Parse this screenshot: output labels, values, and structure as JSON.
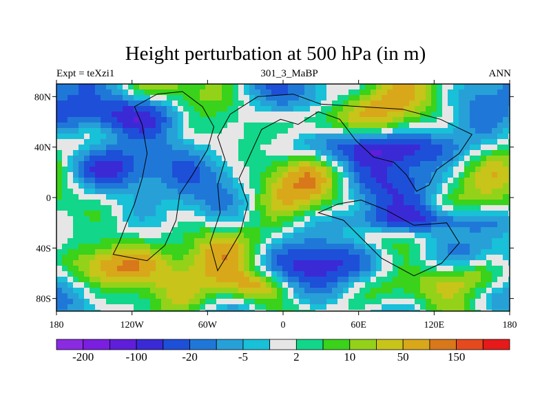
{
  "chart_data": {
    "type": "heatmap",
    "title": "Height perturbation at 500 hPa (in m)",
    "left_string": "Expt = teXzi1",
    "center_string": "301_3_MaBP",
    "right_string": "ANN",
    "x_ticks": [
      {
        "value": -180,
        "label": "180"
      },
      {
        "value": -120,
        "label": "120W"
      },
      {
        "value": -60,
        "label": "60W"
      },
      {
        "value": 0,
        "label": "0"
      },
      {
        "value": 60,
        "label": "60E"
      },
      {
        "value": 120,
        "label": "120E"
      },
      {
        "value": 180,
        "label": "180"
      }
    ],
    "y_ticks": [
      {
        "value": 80,
        "label": "80N"
      },
      {
        "value": 40,
        "label": "40N"
      },
      {
        "value": 0,
        "label": "0"
      },
      {
        "value": -40,
        "label": "40S"
      },
      {
        "value": -80,
        "label": "80S"
      }
    ],
    "xlim": [
      -180,
      180
    ],
    "ylim": [
      -90,
      90
    ],
    "colorbar": {
      "colors": [
        "#8a2be2",
        "#7a1ee0",
        "#5f1ed9",
        "#3a2ad6",
        "#1e4fd8",
        "#1f78d8",
        "#27a0d8",
        "#18c0d8",
        "#e6e6e6",
        "#12d68a",
        "#3ad21a",
        "#94d21a",
        "#c8c41a",
        "#d8a81a",
        "#d8781a",
        "#e54a1e",
        "#e61a1a"
      ],
      "labels": [
        {
          "after_index": 0,
          "label": "-200"
        },
        {
          "after_index": 2,
          "label": "-100"
        },
        {
          "after_index": 4,
          "label": "-20"
        },
        {
          "after_index": 6,
          "label": "-5"
        },
        {
          "after_index": 8,
          "label": "2"
        },
        {
          "after_index": 10,
          "label": "10"
        },
        {
          "after_index": 12,
          "label": "50"
        },
        {
          "after_index": 14,
          "label": "150"
        }
      ]
    },
    "field_blobs": [
      {
        "lon": -125,
        "lat": 65,
        "rx": 54,
        "ry": 16,
        "value": -1
      },
      {
        "lon": -140,
        "lat": 24,
        "rx": 38,
        "ry": 18,
        "value": -1
      },
      {
        "lon": -140,
        "lat": -55,
        "rx": 40,
        "ry": 18,
        "value": 1
      },
      {
        "lon": -20,
        "lat": -70,
        "rx": 30,
        "ry": 14,
        "value": 1
      },
      {
        "lon": 25,
        "lat": 62,
        "rx": 30,
        "ry": 18,
        "value": 1
      },
      {
        "lon": 72,
        "lat": 40,
        "rx": 62,
        "ry": 14,
        "value": -1
      },
      {
        "lon": 75,
        "lat": -52,
        "rx": 58,
        "ry": 18,
        "value": -1
      },
      {
        "lon": 150,
        "lat": -62,
        "rx": 35,
        "ry": 16,
        "value": 1
      },
      {
        "lon": -20,
        "lat": -40,
        "rx": 52,
        "ry": 18,
        "value": 0.4
      },
      {
        "lon": 110,
        "lat": -18,
        "rx": 70,
        "ry": 10,
        "value": -0.7
      }
    ]
  }
}
